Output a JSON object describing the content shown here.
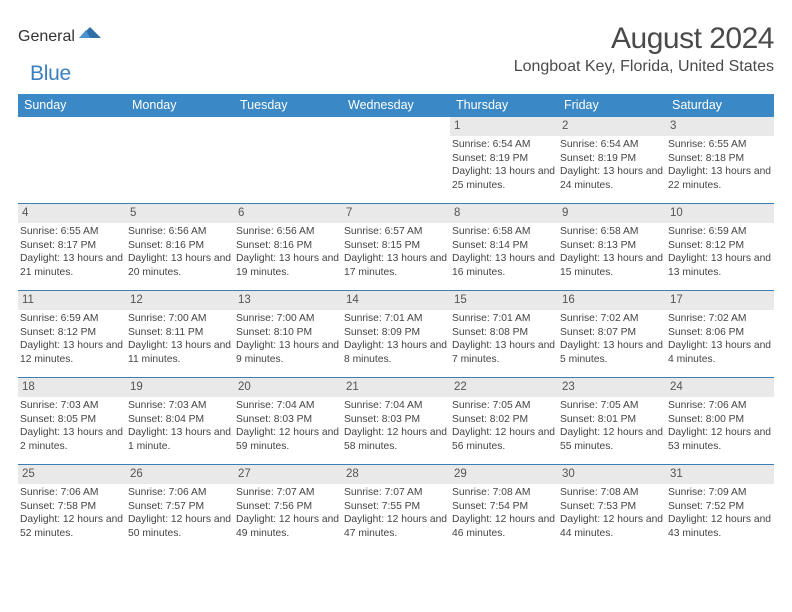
{
  "logo": {
    "textGray": "General",
    "textBlue": "Blue"
  },
  "header": {
    "monthTitle": "August 2024",
    "location": "Longboat Key, Florida, United States"
  },
  "colors": {
    "headerBar": "#3a88c6",
    "weekBorder": "#3a7fb5",
    "numBg": "#e9e9e9",
    "text": "#444444"
  },
  "dayNames": [
    "Sunday",
    "Monday",
    "Tuesday",
    "Wednesday",
    "Thursday",
    "Friday",
    "Saturday"
  ],
  "weeks": [
    [
      {
        "n": "",
        "blank": true
      },
      {
        "n": "",
        "blank": true
      },
      {
        "n": "",
        "blank": true
      },
      {
        "n": "",
        "blank": true
      },
      {
        "n": "1",
        "sr": "6:54 AM",
        "ss": "8:19 PM",
        "dl": "13 hours and 25 minutes."
      },
      {
        "n": "2",
        "sr": "6:54 AM",
        "ss": "8:19 PM",
        "dl": "13 hours and 24 minutes."
      },
      {
        "n": "3",
        "sr": "6:55 AM",
        "ss": "8:18 PM",
        "dl": "13 hours and 22 minutes."
      }
    ],
    [
      {
        "n": "4",
        "sr": "6:55 AM",
        "ss": "8:17 PM",
        "dl": "13 hours and 21 minutes."
      },
      {
        "n": "5",
        "sr": "6:56 AM",
        "ss": "8:16 PM",
        "dl": "13 hours and 20 minutes."
      },
      {
        "n": "6",
        "sr": "6:56 AM",
        "ss": "8:16 PM",
        "dl": "13 hours and 19 minutes."
      },
      {
        "n": "7",
        "sr": "6:57 AM",
        "ss": "8:15 PM",
        "dl": "13 hours and 17 minutes."
      },
      {
        "n": "8",
        "sr": "6:58 AM",
        "ss": "8:14 PM",
        "dl": "13 hours and 16 minutes."
      },
      {
        "n": "9",
        "sr": "6:58 AM",
        "ss": "8:13 PM",
        "dl": "13 hours and 15 minutes."
      },
      {
        "n": "10",
        "sr": "6:59 AM",
        "ss": "8:12 PM",
        "dl": "13 hours and 13 minutes."
      }
    ],
    [
      {
        "n": "11",
        "sr": "6:59 AM",
        "ss": "8:12 PM",
        "dl": "13 hours and 12 minutes."
      },
      {
        "n": "12",
        "sr": "7:00 AM",
        "ss": "8:11 PM",
        "dl": "13 hours and 11 minutes."
      },
      {
        "n": "13",
        "sr": "7:00 AM",
        "ss": "8:10 PM",
        "dl": "13 hours and 9 minutes."
      },
      {
        "n": "14",
        "sr": "7:01 AM",
        "ss": "8:09 PM",
        "dl": "13 hours and 8 minutes."
      },
      {
        "n": "15",
        "sr": "7:01 AM",
        "ss": "8:08 PM",
        "dl": "13 hours and 7 minutes."
      },
      {
        "n": "16",
        "sr": "7:02 AM",
        "ss": "8:07 PM",
        "dl": "13 hours and 5 minutes."
      },
      {
        "n": "17",
        "sr": "7:02 AM",
        "ss": "8:06 PM",
        "dl": "13 hours and 4 minutes."
      }
    ],
    [
      {
        "n": "18",
        "sr": "7:03 AM",
        "ss": "8:05 PM",
        "dl": "13 hours and 2 minutes."
      },
      {
        "n": "19",
        "sr": "7:03 AM",
        "ss": "8:04 PM",
        "dl": "13 hours and 1 minute."
      },
      {
        "n": "20",
        "sr": "7:04 AM",
        "ss": "8:03 PM",
        "dl": "12 hours and 59 minutes."
      },
      {
        "n": "21",
        "sr": "7:04 AM",
        "ss": "8:03 PM",
        "dl": "12 hours and 58 minutes."
      },
      {
        "n": "22",
        "sr": "7:05 AM",
        "ss": "8:02 PM",
        "dl": "12 hours and 56 minutes."
      },
      {
        "n": "23",
        "sr": "7:05 AM",
        "ss": "8:01 PM",
        "dl": "12 hours and 55 minutes."
      },
      {
        "n": "24",
        "sr": "7:06 AM",
        "ss": "8:00 PM",
        "dl": "12 hours and 53 minutes."
      }
    ],
    [
      {
        "n": "25",
        "sr": "7:06 AM",
        "ss": "7:58 PM",
        "dl": "12 hours and 52 minutes."
      },
      {
        "n": "26",
        "sr": "7:06 AM",
        "ss": "7:57 PM",
        "dl": "12 hours and 50 minutes."
      },
      {
        "n": "27",
        "sr": "7:07 AM",
        "ss": "7:56 PM",
        "dl": "12 hours and 49 minutes."
      },
      {
        "n": "28",
        "sr": "7:07 AM",
        "ss": "7:55 PM",
        "dl": "12 hours and 47 minutes."
      },
      {
        "n": "29",
        "sr": "7:08 AM",
        "ss": "7:54 PM",
        "dl": "12 hours and 46 minutes."
      },
      {
        "n": "30",
        "sr": "7:08 AM",
        "ss": "7:53 PM",
        "dl": "12 hours and 44 minutes."
      },
      {
        "n": "31",
        "sr": "7:09 AM",
        "ss": "7:52 PM",
        "dl": "12 hours and 43 minutes."
      }
    ]
  ],
  "labels": {
    "sunrise": "Sunrise:",
    "sunset": "Sunset:",
    "daylight": "Daylight:"
  }
}
